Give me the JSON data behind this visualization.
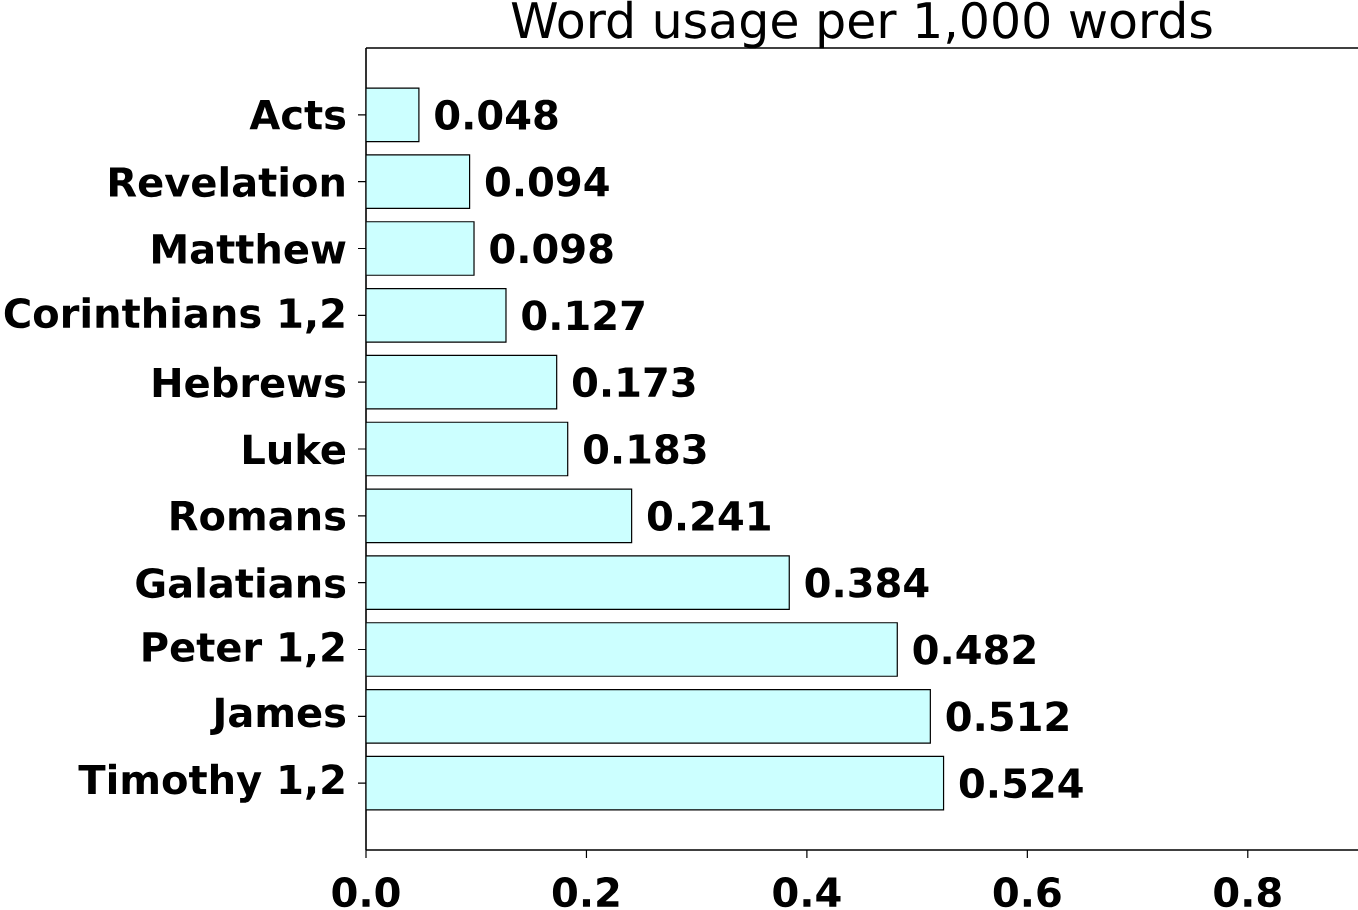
{
  "chart_data": {
    "type": "bar",
    "orientation": "horizontal",
    "title": "Word usage per 1,000 words",
    "categories": [
      "Acts",
      "Revelation",
      "Matthew",
      "Corinthians 1,2",
      "Hebrews",
      "Luke",
      "Romans",
      "Galatians",
      "Peter 1,2",
      "James",
      "Timothy 1,2"
    ],
    "values": [
      0.048,
      0.094,
      0.098,
      0.127,
      0.173,
      0.183,
      0.241,
      0.384,
      0.482,
      0.512,
      0.524
    ],
    "color": "#ccffff",
    "xlim": [
      0,
      0.9
    ],
    "xticks": [
      {
        "value": 0,
        "label": "0.0"
      },
      0.2,
      0.4,
      0.6,
      0.8
    ],
    "data_labels": true
  }
}
